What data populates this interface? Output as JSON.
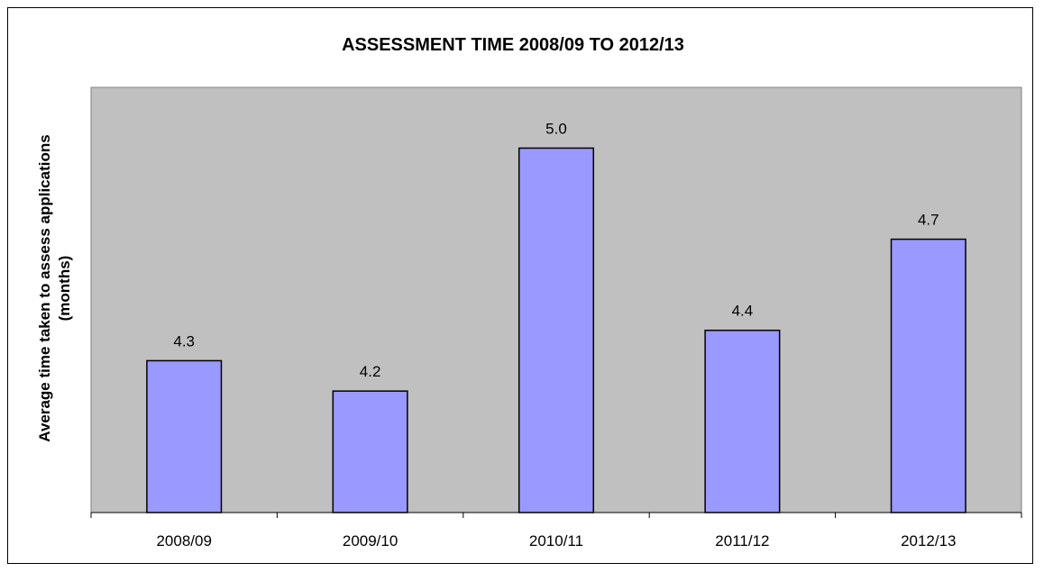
{
  "chart_data": {
    "type": "bar",
    "title": "ASSESSMENT TIME 2008/09 TO 2012/13",
    "xlabel": "",
    "ylabel_line1": "Average time taken to assess applications",
    "ylabel_line2": "(months)",
    "categories": [
      "2008/09",
      "2009/10",
      "2010/11",
      "2011/12",
      "2012/13"
    ],
    "values": [
      4.3,
      4.2,
      5.0,
      4.4,
      4.7
    ],
    "data_labels": [
      "4.3",
      "4.2",
      "5.0",
      "4.4",
      "4.7"
    ],
    "ylim": [
      3.8,
      5.2
    ],
    "grid": false,
    "legend": "none",
    "colors": {
      "plot_background": "#c0c0c0",
      "bar_fill": "#9999ff",
      "bar_stroke": "#000000"
    }
  }
}
